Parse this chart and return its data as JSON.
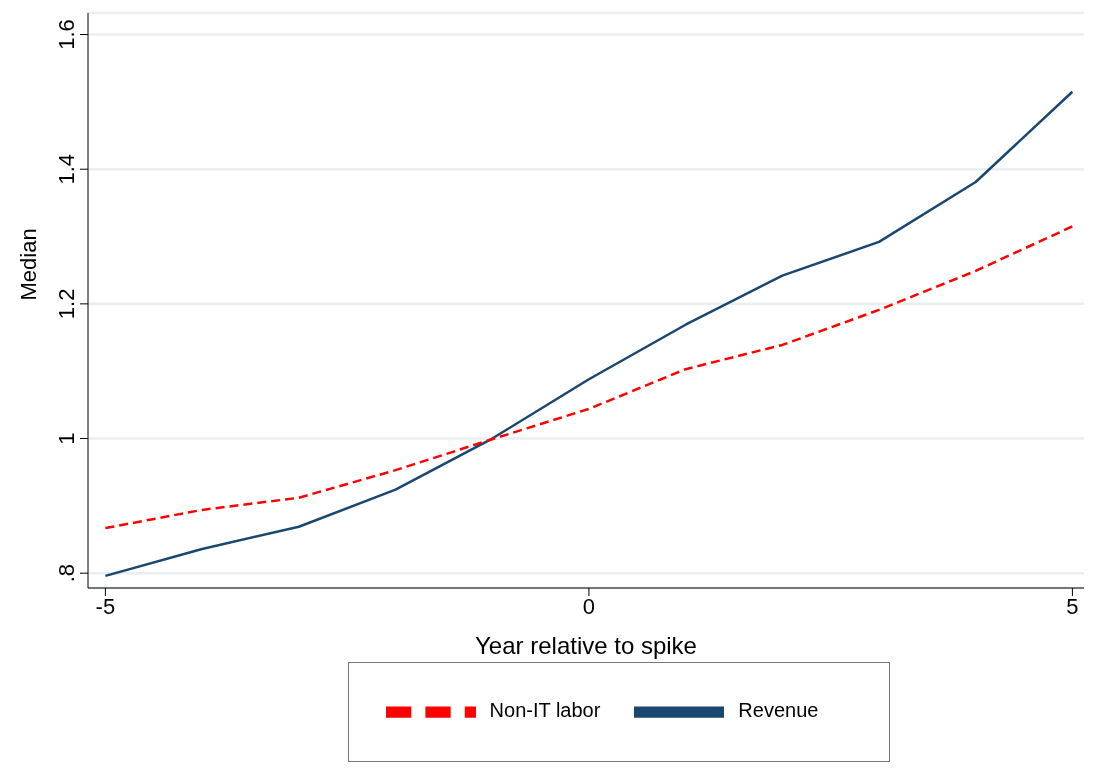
{
  "chart_data": {
    "type": "line",
    "xlabel": "Year relative to spike",
    "ylabel": "Median",
    "x": [
      -5,
      -4,
      -3,
      -2,
      -1,
      0,
      1,
      2,
      3,
      4,
      5
    ],
    "series": [
      {
        "name": "Revenue",
        "color": "#1a476f",
        "line_style": "solid",
        "values": [
          0.796,
          0.836,
          0.869,
          0.924,
          1.0,
          1.088,
          1.169,
          1.242,
          1.292,
          1.381,
          1.515
        ]
      },
      {
        "name": "Non-IT labor",
        "color": "#ff0000",
        "line_style": "dashed",
        "values": [
          0.867,
          0.894,
          0.912,
          0.953,
          0.999,
          1.044,
          1.103,
          1.139,
          1.191,
          1.249,
          1.315
        ]
      }
    ],
    "xlim": [
      -5.18,
      5.12
    ],
    "xticks": [
      -5,
      0,
      5
    ],
    "ylim": [
      0.778,
      1.632
    ],
    "yticks": [
      {
        "value": 0.8,
        "label": ".8"
      },
      1,
      1.2,
      1.4,
      1.6
    ],
    "grid": "y",
    "legend": "bottom",
    "marker": "none"
  }
}
